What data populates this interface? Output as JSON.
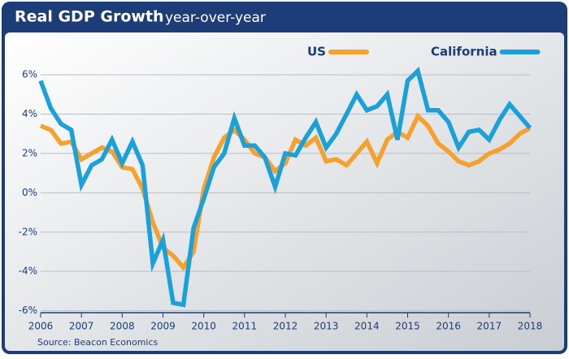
{
  "chart_data": {
    "type": "line",
    "title": "Real GDP Growth",
    "subtitle": "year-over-year",
    "source": "Source: Beacon Economics",
    "x": [
      2006,
      2006.25,
      2006.5,
      2006.75,
      2007,
      2007.25,
      2007.5,
      2007.75,
      2008,
      2008.25,
      2008.5,
      2008.75,
      2009,
      2009.25,
      2009.5,
      2009.75,
      2010,
      2010.25,
      2010.5,
      2010.75,
      2011,
      2011.25,
      2011.5,
      2011.75,
      2012,
      2012.25,
      2012.5,
      2012.75,
      2013,
      2013.25,
      2013.5,
      2013.75,
      2014,
      2014.25,
      2014.5,
      2014.75,
      2015,
      2015.25,
      2015.5,
      2015.75,
      2016,
      2016.25,
      2016.5,
      2016.75,
      2017,
      2017.25,
      2017.5,
      2017.75,
      2018
    ],
    "xlim": [
      2006,
      2018
    ],
    "xticks": [
      2006,
      2007,
      2008,
      2009,
      2010,
      2011,
      2012,
      2013,
      2014,
      2015,
      2016,
      2017,
      2018
    ],
    "ylim": [
      -6.1,
      6.5
    ],
    "yticks": [
      {
        "value": -6,
        "label": "-6%"
      },
      {
        "value": -4,
        "label": "-4%"
      },
      {
        "value": -2,
        "label": "-2%"
      },
      {
        "value": 0,
        "label": "0%"
      },
      {
        "value": 2,
        "label": "2%"
      },
      {
        "value": 4,
        "label": "4%"
      },
      {
        "value": 6,
        "label": "6%"
      }
    ],
    "grid": true,
    "legend": "top-right",
    "series": [
      {
        "name": "US",
        "color": "#f6a02d",
        "values": [
          3.4,
          3.2,
          2.5,
          2.6,
          1.7,
          2.0,
          2.3,
          2.1,
          1.3,
          1.2,
          0.2,
          -1.5,
          -2.8,
          -3.2,
          -3.8,
          -3.0,
          0.2,
          1.8,
          2.8,
          3.2,
          2.7,
          2.0,
          1.8,
          1.1,
          1.5,
          2.7,
          2.4,
          2.8,
          1.6,
          1.7,
          1.4,
          2.0,
          2.6,
          1.5,
          2.7,
          3.1,
          2.8,
          3.9,
          3.4,
          2.5,
          2.1,
          1.6,
          1.4,
          1.6,
          2.0,
          2.2,
          2.5,
          3.0,
          3.3
        ]
      },
      {
        "name": "California",
        "color": "#1ba1d9",
        "values": [
          5.7,
          4.3,
          3.5,
          3.2,
          0.4,
          1.4,
          1.7,
          2.7,
          1.5,
          2.6,
          1.4,
          -3.6,
          -2.4,
          -5.6,
          -5.7,
          -1.8,
          -0.3,
          1.3,
          2.0,
          3.8,
          2.4,
          2.4,
          1.8,
          0.3,
          2.0,
          1.9,
          2.8,
          3.6,
          2.3,
          3.0,
          4.0,
          5.0,
          4.2,
          4.4,
          5.0,
          2.7,
          5.7,
          6.2,
          4.2,
          4.2,
          3.6,
          2.3,
          3.1,
          3.2,
          2.7,
          3.7,
          4.5,
          3.9,
          3.3
        ]
      }
    ]
  }
}
